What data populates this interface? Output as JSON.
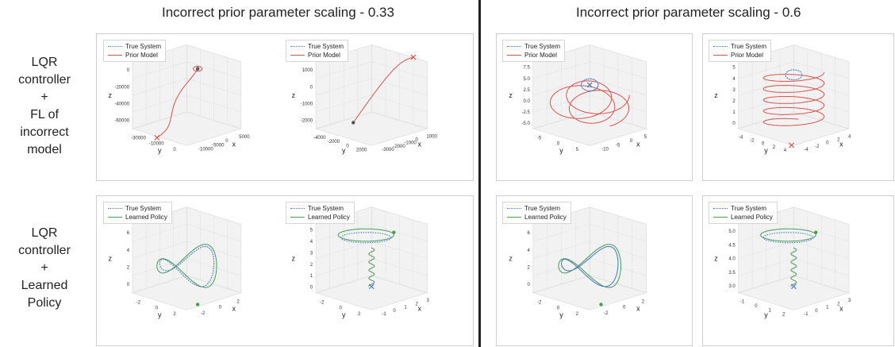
{
  "columns": [
    {
      "title": "Incorrect prior parameter scaling - 0.33"
    },
    {
      "title": "Incorrect prior parameter scaling - 0.6"
    }
  ],
  "rows": [
    {
      "label_lines": [
        "LQR",
        "controller",
        "+",
        "FL of",
        "incorrect",
        "model"
      ]
    },
    {
      "label_lines": [
        "LQR",
        "controller",
        "+",
        "Learned",
        "Policy"
      ]
    }
  ],
  "colors": {
    "true_system": "#4a7fc1",
    "prior_model": "#d9534f",
    "learned_policy": "#4a9a5a",
    "divider": "#222222"
  },
  "chart_data": [
    {
      "type": "line",
      "panel": "top-left-1",
      "legend": [
        "True System",
        "Prior Model"
      ],
      "xlabel": "x",
      "ylabel": "y",
      "zlabel": "z",
      "x_ticks": [
        "-10000",
        "-5000",
        "0",
        "5000"
      ],
      "y_ticks": [
        "-30000",
        "-10000",
        "0"
      ],
      "z_ticks": [
        "0",
        "-20000",
        "-40000",
        "-60000"
      ]
    },
    {
      "type": "line",
      "panel": "top-left-2",
      "legend": [
        "True System",
        "Prior Model"
      ],
      "xlabel": "x",
      "ylabel": "y",
      "zlabel": "z",
      "x_ticks": [
        "-3000",
        "-2000",
        "-1000",
        "0",
        "1000"
      ],
      "y_ticks": [
        "-4000",
        "-2000",
        "0",
        "2000"
      ],
      "z_ticks": [
        "1000",
        "0",
        "-1000",
        "-2000"
      ]
    },
    {
      "type": "line",
      "panel": "top-right-1",
      "legend": [
        "True System",
        "Prior Model"
      ],
      "xlabel": "x",
      "ylabel": "y",
      "zlabel": "z",
      "x_ticks": [
        "-10",
        "-5",
        "0",
        "5"
      ],
      "y_ticks": [
        "-5",
        "0",
        "5"
      ],
      "z_ticks": [
        "7.5",
        "5.0",
        "2.5",
        "0.0",
        "-2.5",
        "-5.0"
      ]
    },
    {
      "type": "line",
      "panel": "top-right-2",
      "legend": [
        "True System",
        "Prior Model"
      ],
      "xlabel": "x",
      "ylabel": "y",
      "zlabel": "z",
      "x_ticks": [
        "-4",
        "-2",
        "0",
        "2",
        "4"
      ],
      "y_ticks": [
        "-4",
        "-2",
        "0",
        "2",
        "4"
      ],
      "z_ticks": [
        "5",
        "4",
        "3",
        "2",
        "1",
        "0"
      ]
    },
    {
      "type": "line",
      "panel": "bottom-left-1",
      "legend": [
        "True System",
        "Learned Policy"
      ],
      "xlabel": "x",
      "ylabel": "y",
      "zlabel": "z",
      "x_ticks": [
        "-2",
        "0",
        "2"
      ],
      "y_ticks": [
        "-2",
        "0",
        "2"
      ],
      "z_ticks": [
        "6",
        "4",
        "2",
        "0"
      ]
    },
    {
      "type": "line",
      "panel": "bottom-left-2",
      "legend": [
        "True System",
        "Learned Policy"
      ],
      "xlabel": "x",
      "ylabel": "y",
      "zlabel": "z",
      "x_ticks": [
        "-1",
        "0",
        "1",
        "2",
        "3"
      ],
      "y_ticks": [
        "-2",
        "0",
        "2"
      ],
      "z_ticks": [
        "5",
        "4",
        "3",
        "2",
        "1",
        "0"
      ]
    },
    {
      "type": "line",
      "panel": "bottom-right-1",
      "legend": [
        "True System",
        "Learned Policy"
      ],
      "xlabel": "x",
      "ylabel": "y",
      "zlabel": "z",
      "x_ticks": [
        "-2",
        "0",
        "2"
      ],
      "y_ticks": [
        "-2",
        "0",
        "2"
      ],
      "z_ticks": [
        "6",
        "4",
        "2",
        "0"
      ]
    },
    {
      "type": "line",
      "panel": "bottom-right-2",
      "legend": [
        "True System",
        "Learned Policy"
      ],
      "xlabel": "x",
      "ylabel": "y",
      "zlabel": "z",
      "x_ticks": [
        "-1",
        "0",
        "1",
        "2",
        "3"
      ],
      "y_ticks": [
        "-1",
        "0",
        "1",
        "2"
      ],
      "z_ticks": [
        "5.0",
        "4.5",
        "4.0",
        "3.5",
        "3.0"
      ]
    }
  ]
}
